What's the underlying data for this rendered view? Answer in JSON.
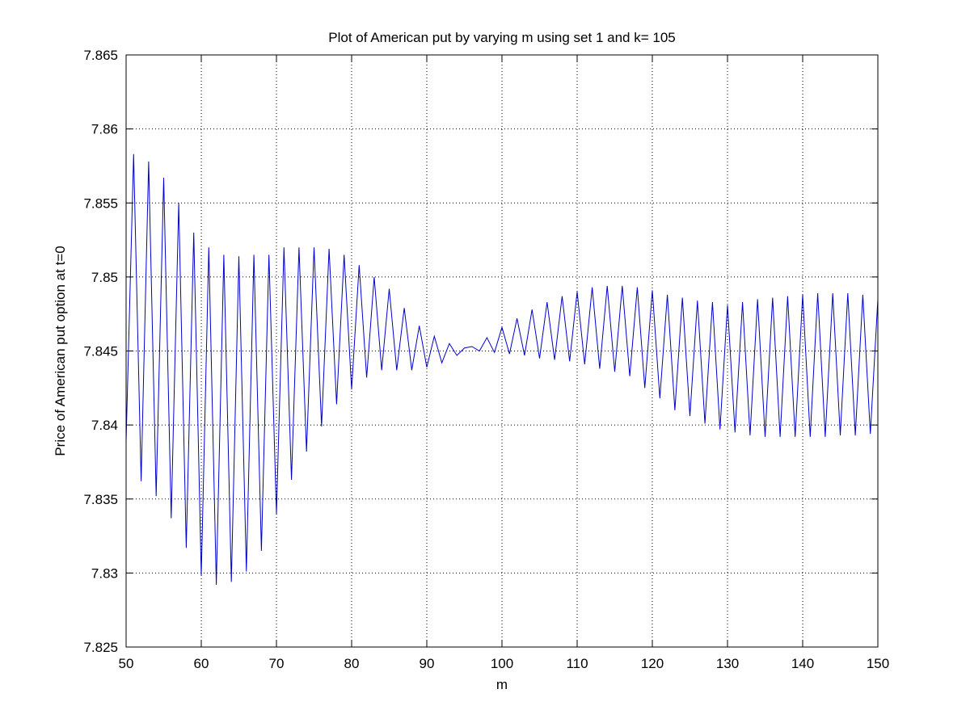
{
  "chart_data": {
    "type": "line",
    "title": "Plot of American put by varying m using set 1 and k= 105",
    "xlabel": "m",
    "ylabel": "Price of American put option at t=0",
    "xlim": [
      50,
      150
    ],
    "ylim": [
      7.825,
      7.865
    ],
    "xticks": [
      "50",
      "60",
      "70",
      "80",
      "90",
      "100",
      "110",
      "120",
      "130",
      "140",
      "150"
    ],
    "yticks": [
      "7.825",
      "7.83",
      "7.835",
      "7.84",
      "7.845",
      "7.85",
      "7.855",
      "7.86",
      "7.865"
    ],
    "grid": true,
    "line_color": "#0000cc",
    "series": [
      {
        "x": [
          50,
          51,
          52,
          53,
          54,
          55,
          56,
          57,
          58,
          59,
          60,
          61,
          62,
          63,
          64,
          65,
          66,
          67,
          68,
          69,
          70,
          71,
          72,
          73,
          74,
          75,
          76,
          77,
          78,
          79,
          80,
          81,
          82,
          83,
          84,
          85,
          86,
          87,
          88,
          89,
          90,
          91,
          92,
          93,
          94,
          95,
          96,
          97,
          98,
          99,
          100,
          101,
          102,
          103,
          104,
          105,
          106,
          107,
          108,
          109,
          110,
          111,
          112,
          113,
          114,
          115,
          116,
          117,
          118,
          119,
          120,
          121,
          122,
          123,
          124,
          125,
          126,
          127,
          128,
          129,
          130,
          131,
          132,
          133,
          134,
          135,
          136,
          137,
          138,
          139,
          140,
          141,
          142,
          143,
          144,
          145,
          146,
          147,
          148,
          149,
          150
        ],
        "values": [
          7.8389,
          7.8583,
          7.8362,
          7.8578,
          7.8352,
          7.8567,
          7.8337,
          7.855,
          7.8317,
          7.853,
          7.8298,
          7.852,
          7.8292,
          7.8515,
          7.8294,
          7.8514,
          7.8301,
          7.8515,
          7.8315,
          7.8515,
          7.834,
          7.852,
          7.8363,
          7.852,
          7.8382,
          7.852,
          7.8399,
          7.8519,
          7.8414,
          7.8515,
          7.8424,
          7.8508,
          7.8432,
          7.85,
          7.8437,
          7.8492,
          7.8437,
          7.8479,
          7.8437,
          7.8467,
          7.8439,
          7.846,
          7.8442,
          7.8455,
          7.8447,
          7.8452,
          7.8453,
          7.845,
          7.8459,
          7.8449,
          7.8466,
          7.8448,
          7.8472,
          7.8447,
          7.8478,
          7.8445,
          7.8483,
          7.8444,
          7.8487,
          7.8443,
          7.849,
          7.8441,
          7.8493,
          7.8438,
          7.8494,
          7.8436,
          7.8494,
          7.8433,
          7.8493,
          7.8425,
          7.8491,
          7.8418,
          7.8488,
          7.841,
          7.8486,
          7.8406,
          7.8484,
          7.8401,
          7.8483,
          7.8397,
          7.8481,
          7.8395,
          7.8483,
          7.8393,
          7.8485,
          7.8392,
          7.8486,
          7.8392,
          7.8487,
          7.8392,
          7.8488,
          7.8392,
          7.8489,
          7.8392,
          7.8489,
          7.8393,
          7.8489,
          7.8393,
          7.8488,
          7.8394,
          7.8485
        ]
      }
    ]
  }
}
